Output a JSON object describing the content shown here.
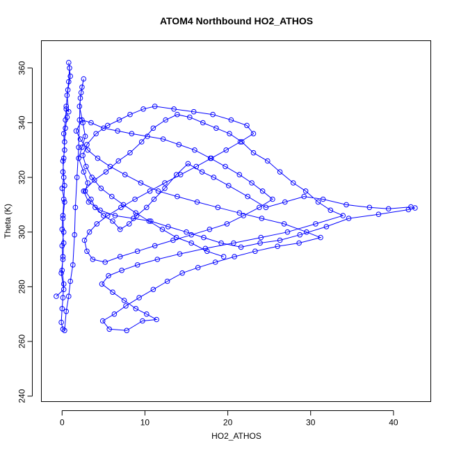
{
  "chart_data": {
    "type": "line",
    "title": "ATOM4 Northbound HO2_ATHOS",
    "xlabel": "HO2_ATHOS",
    "ylabel": "Theta (K)",
    "xlim": [
      -2.5,
      44.5
    ],
    "ylim": [
      238,
      370
    ],
    "xticks": [
      0,
      10,
      20,
      30,
      40
    ],
    "yticks": [
      240,
      260,
      280,
      300,
      320,
      340,
      360
    ],
    "grid": false,
    "legend": "none",
    "color": "#0000ff",
    "marker": "open-circle",
    "series": [
      {
        "values": [
          [
            -0.7,
            276.5
          ],
          [
            0.2,
            279
          ],
          [
            -0.1,
            285
          ],
          [
            0.1,
            290
          ],
          [
            0.0,
            295
          ],
          [
            0.2,
            300
          ],
          [
            0.1,
            305
          ],
          [
            0.3,
            311
          ],
          [
            0.0,
            316
          ],
          [
            0.2,
            320
          ],
          [
            0.1,
            326
          ],
          [
            0.3,
            330
          ],
          [
            0.2,
            336
          ],
          [
            0.4,
            341
          ],
          [
            0.5,
            345
          ],
          [
            0.8,
            344
          ],
          [
            0.6,
            350
          ],
          [
            0.8,
            355
          ],
          [
            0.9,
            360
          ],
          [
            0.8,
            362
          ],
          [
            1.0,
            357
          ],
          [
            0.7,
            352
          ],
          [
            0.5,
            346
          ],
          [
            0.6,
            342
          ],
          [
            0.4,
            338
          ],
          [
            0.3,
            333
          ],
          [
            0.2,
            327
          ],
          [
            0.1,
            322
          ],
          [
            0.3,
            317
          ],
          [
            0.2,
            312
          ],
          [
            0.1,
            306
          ],
          [
            0.0,
            301
          ],
          [
            0.2,
            296
          ],
          [
            0.1,
            291
          ],
          [
            0.0,
            286
          ],
          [
            0.2,
            281
          ],
          [
            0.1,
            276
          ],
          [
            0.0,
            272
          ],
          [
            -0.1,
            267
          ],
          [
            0.1,
            264.5
          ],
          [
            0.3,
            264
          ],
          [
            0.5,
            271
          ],
          [
            0.8,
            276.5
          ],
          [
            1.0,
            282
          ],
          [
            1.3,
            288
          ],
          [
            1.5,
            299
          ],
          [
            1.6,
            309
          ],
          [
            1.8,
            320
          ],
          [
            2.0,
            331
          ],
          [
            2.1,
            341
          ],
          [
            2.2,
            349
          ],
          [
            2.4,
            353
          ],
          [
            2.6,
            356
          ],
          [
            2.3,
            351
          ],
          [
            2.1,
            346
          ],
          [
            2.5,
            340
          ],
          [
            2.8,
            335
          ],
          [
            2.4,
            331
          ],
          [
            2.0,
            327
          ],
          [
            2.6,
            322
          ],
          [
            3.1,
            318
          ],
          [
            2.8,
            315
          ],
          [
            3.5,
            312
          ],
          [
            4.0,
            309
          ],
          [
            5.0,
            306
          ],
          [
            6.1,
            304
          ],
          [
            7.0,
            301
          ],
          [
            8.1,
            303
          ],
          [
            9.0,
            306
          ],
          [
            10.2,
            309
          ],
          [
            11.1,
            312
          ],
          [
            12.4,
            316
          ],
          [
            13.8,
            321
          ],
          [
            15.2,
            325
          ],
          [
            16.9,
            322
          ],
          [
            18.3,
            320
          ],
          [
            20.1,
            317
          ],
          [
            22.4,
            313
          ],
          [
            24.6,
            309
          ],
          [
            26.9,
            311
          ],
          [
            29.2,
            313
          ],
          [
            31.5,
            312
          ],
          [
            34.3,
            310
          ],
          [
            37.1,
            309
          ],
          [
            39.4,
            308.5
          ],
          [
            42.1,
            309.2
          ],
          [
            42.6,
            308.8
          ],
          [
            41.8,
            308.2
          ],
          [
            38.2,
            306.5
          ],
          [
            34.6,
            305
          ],
          [
            31.9,
            302
          ],
          [
            28.7,
            299
          ],
          [
            26.3,
            297
          ],
          [
            23.9,
            296
          ],
          [
            21.6,
            294.5
          ],
          [
            19.2,
            296
          ],
          [
            17.1,
            298
          ],
          [
            15.0,
            300
          ],
          [
            12.8,
            302
          ],
          [
            10.7,
            304
          ],
          [
            8.6,
            305
          ],
          [
            6.4,
            306
          ],
          [
            4.6,
            308
          ],
          [
            3.2,
            311
          ],
          [
            2.6,
            315
          ],
          [
            3.9,
            319
          ],
          [
            5.3,
            322
          ],
          [
            6.8,
            326
          ],
          [
            8.2,
            329
          ],
          [
            9.6,
            333
          ],
          [
            11.0,
            338
          ],
          [
            12.5,
            341
          ],
          [
            13.9,
            343
          ],
          [
            15.4,
            342
          ],
          [
            17.0,
            340
          ],
          [
            18.6,
            338
          ],
          [
            20.2,
            336
          ],
          [
            21.7,
            333
          ],
          [
            23.1,
            329
          ],
          [
            24.8,
            326
          ],
          [
            26.3,
            322
          ],
          [
            27.9,
            318
          ],
          [
            29.4,
            315
          ],
          [
            30.9,
            311
          ],
          [
            32.4,
            308
          ],
          [
            33.9,
            306
          ],
          [
            30.6,
            303
          ],
          [
            27.2,
            300
          ],
          [
            24.0,
            298
          ],
          [
            20.7,
            296
          ],
          [
            17.3,
            294
          ],
          [
            14.2,
            292
          ],
          [
            11.5,
            290
          ],
          [
            9.1,
            288
          ],
          [
            7.2,
            286
          ],
          [
            5.6,
            284
          ],
          [
            4.8,
            281
          ],
          [
            6.1,
            278
          ],
          [
            7.5,
            275
          ],
          [
            8.9,
            272
          ],
          [
            10.2,
            270
          ],
          [
            11.4,
            268
          ],
          [
            9.7,
            267.5
          ],
          [
            7.8,
            264
          ],
          [
            5.7,
            264.5
          ],
          [
            4.9,
            267.5
          ],
          [
            6.3,
            270
          ],
          [
            7.7,
            273
          ],
          [
            9.3,
            276
          ],
          [
            11.0,
            279
          ],
          [
            12.7,
            282
          ],
          [
            14.5,
            285
          ],
          [
            16.4,
            287
          ],
          [
            18.5,
            289
          ],
          [
            20.8,
            291
          ],
          [
            23.3,
            293
          ],
          [
            26.0,
            294.8
          ],
          [
            28.6,
            296
          ],
          [
            31.2,
            298
          ],
          [
            29.5,
            300
          ],
          [
            26.8,
            303
          ],
          [
            24.1,
            305
          ],
          [
            21.4,
            307
          ],
          [
            18.8,
            309
          ],
          [
            16.3,
            311
          ],
          [
            13.9,
            313
          ],
          [
            11.6,
            315
          ],
          [
            9.5,
            318
          ],
          [
            7.6,
            321
          ],
          [
            5.8,
            324
          ],
          [
            4.3,
            327
          ],
          [
            3.1,
            330
          ],
          [
            2.2,
            334
          ],
          [
            1.7,
            337
          ],
          [
            2.4,
            341
          ],
          [
            3.5,
            340
          ],
          [
            5.0,
            338
          ],
          [
            6.7,
            337
          ],
          [
            8.4,
            336
          ],
          [
            10.3,
            335
          ],
          [
            12.2,
            334
          ],
          [
            14.1,
            332
          ],
          [
            16.0,
            330
          ],
          [
            17.9,
            327
          ],
          [
            19.7,
            324
          ],
          [
            21.4,
            321
          ],
          [
            22.9,
            318
          ],
          [
            24.2,
            315
          ],
          [
            25.4,
            312
          ],
          [
            23.8,
            309
          ],
          [
            21.9,
            306
          ],
          [
            19.9,
            303
          ],
          [
            17.8,
            301
          ],
          [
            15.6,
            299
          ],
          [
            13.4,
            297
          ],
          [
            11.2,
            295
          ],
          [
            9.1,
            293
          ],
          [
            7.0,
            291
          ],
          [
            5.2,
            289
          ],
          [
            3.7,
            290
          ],
          [
            3.0,
            293
          ],
          [
            2.7,
            297
          ],
          [
            3.3,
            300
          ],
          [
            4.2,
            303
          ],
          [
            5.5,
            306
          ],
          [
            7.1,
            309
          ],
          [
            8.8,
            312
          ],
          [
            10.6,
            315
          ],
          [
            12.4,
            318
          ],
          [
            14.3,
            321
          ],
          [
            16.2,
            324
          ],
          [
            18.0,
            327
          ],
          [
            19.8,
            330
          ],
          [
            21.5,
            333
          ],
          [
            23.1,
            336
          ],
          [
            22.3,
            339
          ],
          [
            20.4,
            341
          ],
          [
            18.2,
            343
          ],
          [
            15.9,
            344
          ],
          [
            13.5,
            345
          ],
          [
            11.2,
            346
          ],
          [
            9.8,
            345
          ],
          [
            8.2,
            343
          ],
          [
            6.9,
            341
          ],
          [
            5.5,
            339
          ],
          [
            4.1,
            336
          ],
          [
            3.0,
            332
          ],
          [
            2.5,
            328
          ],
          [
            2.9,
            324
          ],
          [
            3.6,
            320
          ],
          [
            4.7,
            316
          ],
          [
            6.0,
            313
          ],
          [
            7.4,
            310
          ],
          [
            8.9,
            307
          ],
          [
            10.5,
            304
          ],
          [
            12.1,
            301
          ],
          [
            13.8,
            298
          ],
          [
            15.6,
            296
          ],
          [
            17.5,
            293
          ],
          [
            19.5,
            291
          ]
        ]
      }
    ]
  }
}
